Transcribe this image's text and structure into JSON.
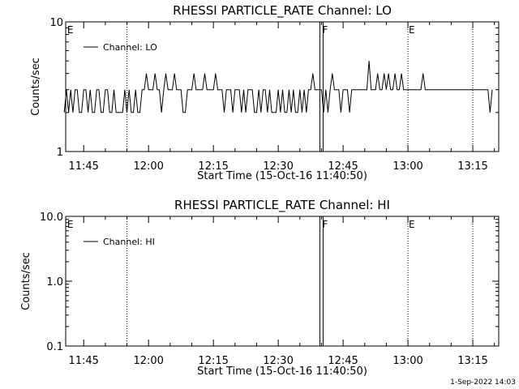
{
  "footer": {
    "timestamp": "1-Sep-2022 14:03"
  },
  "chart_data": [
    {
      "type": "line",
      "title": "RHESSI PARTICLE_RATE Channel: LO",
      "xlabel": "Start Time (15-Oct-16 11:40:50)",
      "ylabel": "Counts/sec",
      "yscale": "log",
      "ylim": [
        1,
        10
      ],
      "yticks": [
        1,
        10
      ],
      "ytick_labels": [
        "1",
        "10"
      ],
      "xlim_minutes": [
        "11:40:50",
        "13:21:00"
      ],
      "xtick_labels": [
        "11:45",
        "12:00",
        "12:15",
        "12:30",
        "12:45",
        "13:00",
        "13:15"
      ],
      "legend": {
        "position": "top-left",
        "label": "Channel: LO"
      },
      "markers": [
        {
          "time": "11:41",
          "label": "E",
          "style": "solid"
        },
        {
          "time": "11:55",
          "label": "",
          "style": "dotted"
        },
        {
          "time": "12:40",
          "label": "F",
          "style": "double"
        },
        {
          "time": "13:00",
          "label": "E",
          "style": "dotted"
        },
        {
          "time": "13:15",
          "label": "",
          "style": "dotted"
        }
      ],
      "series": [
        {
          "name": "Channel: LO",
          "x_minutes_from_1140": [
            0.5,
            1,
            1.5,
            2,
            2.5,
            3,
            3.5,
            4,
            4.5,
            5,
            5.5,
            6,
            6.5,
            7,
            7.5,
            8,
            8.5,
            9,
            9.5,
            10,
            10.5,
            11,
            11.5,
            12,
            12.5,
            13,
            13.5,
            14,
            14.5,
            15,
            15.5,
            16,
            16.5,
            17,
            17.5,
            18,
            18.5,
            19,
            19.5,
            20,
            20.5,
            21,
            21.5,
            22,
            22.5,
            23,
            23.5,
            24,
            24.5,
            25,
            25.5,
            26,
            26.5,
            27,
            27.5,
            28,
            28.5,
            29,
            29.5,
            30,
            30.5,
            31,
            31.5,
            32,
            32.5,
            33,
            33.5,
            34,
            34.5,
            35,
            35.5,
            36,
            36.5,
            37,
            37.5,
            38,
            38.5,
            39,
            39.5,
            40,
            40.5,
            41,
            41.5,
            42,
            42.5,
            43,
            43.5,
            44,
            44.5,
            45,
            45.5,
            46,
            46.5,
            47,
            47.5,
            48,
            48.5,
            49,
            49.5,
            50,
            50.5,
            51,
            51.5,
            52,
            52.5,
            53,
            53.5,
            54,
            54.5,
            55,
            55.5,
            56,
            56.5,
            57,
            57.5,
            58,
            58.5,
            59,
            59.5,
            60,
            60.5,
            61,
            61.5,
            62,
            62.5,
            63,
            63.5,
            64,
            64.5,
            65,
            65.5,
            66,
            66.5,
            67,
            67.5,
            68,
            68.5,
            69,
            69.5,
            70,
            70.5,
            71,
            71.5,
            72,
            72.5,
            73,
            73.5,
            74,
            74.5,
            75,
            75.5,
            76,
            76.5,
            77,
            77.5,
            78,
            78.5,
            79,
            79.5,
            80,
            80.5,
            81,
            81.5,
            82,
            82.5,
            83,
            83.5,
            84,
            84.5,
            85,
            85.5,
            86,
            86.5,
            87,
            87.5,
            88,
            88.5,
            89,
            89.5,
            90,
            90.5,
            91,
            91.5,
            92,
            92.5,
            93,
            93.5,
            94,
            94.5,
            95,
            95.5,
            96,
            96.5,
            97,
            97.5,
            98,
            98.5,
            99,
            99.5,
            100,
            100.5
          ],
          "y": [
            2,
            3,
            2,
            3,
            2,
            3,
            3,
            2,
            2,
            3,
            3,
            2,
            3,
            2,
            2,
            3,
            3,
            2,
            2,
            3,
            3,
            2,
            2,
            3,
            2,
            2,
            2,
            2,
            3,
            2,
            3,
            2,
            2,
            3,
            2,
            2,
            3,
            3,
            4,
            3,
            3,
            3,
            4,
            3,
            3,
            2,
            3,
            4,
            3,
            3,
            3,
            4,
            3,
            3,
            3,
            2,
            2,
            3,
            3,
            3,
            4,
            3,
            3,
            3,
            3,
            4,
            3,
            3,
            3,
            3,
            4,
            3,
            3,
            3,
            2,
            3,
            3,
            3,
            2,
            3,
            3,
            3,
            2,
            3,
            2,
            3,
            3,
            3,
            2,
            2,
            3,
            2,
            3,
            3,
            2,
            3,
            2,
            2,
            2,
            3,
            2,
            3,
            2,
            2,
            3,
            2,
            3,
            2,
            2,
            3,
            2,
            3,
            2,
            3,
            3,
            4,
            3,
            3,
            3,
            3,
            2,
            3,
            2,
            3,
            4,
            3,
            3,
            3,
            2,
            3,
            3,
            3,
            2,
            3,
            3,
            3,
            3,
            3,
            3,
            3,
            3,
            5,
            3,
            3,
            3,
            4,
            3,
            3,
            4,
            3,
            4,
            3,
            3,
            4,
            3,
            3,
            4,
            3,
            3,
            3,
            3,
            3,
            3,
            3,
            3,
            3,
            4,
            3,
            3,
            3,
            3,
            3,
            3,
            3,
            3,
            3,
            3,
            3,
            3,
            3,
            3,
            3,
            3,
            3,
            3,
            3,
            3,
            3,
            3,
            3,
            3,
            3,
            3,
            3,
            3,
            3,
            3,
            2,
            3
          ]
        }
      ]
    },
    {
      "type": "line",
      "title": "RHESSI PARTICLE_RATE Channel: HI",
      "xlabel": "Start Time (15-Oct-16 11:40:50)",
      "ylabel": "Counts/sec",
      "yscale": "log",
      "ylim": [
        0.1,
        10
      ],
      "yticks": [
        0.1,
        1,
        10
      ],
      "ytick_labels": [
        "0.1",
        "1.0",
        "10.0"
      ],
      "xtick_labels": [
        "11:45",
        "12:00",
        "12:15",
        "12:30",
        "12:45",
        "13:00",
        "13:15"
      ],
      "legend": {
        "position": "top-left",
        "label": "Channel: HI"
      },
      "markers": [
        {
          "time": "11:41",
          "label": "E",
          "style": "solid"
        },
        {
          "time": "11:55",
          "label": "",
          "style": "dotted"
        },
        {
          "time": "12:40",
          "label": "F",
          "style": "double"
        },
        {
          "time": "13:00",
          "label": "E",
          "style": "dotted"
        },
        {
          "time": "13:15",
          "label": "",
          "style": "dotted"
        }
      ],
      "series": [
        {
          "name": "Channel: HI",
          "x_minutes_from_1140": [],
          "y": []
        }
      ]
    }
  ]
}
